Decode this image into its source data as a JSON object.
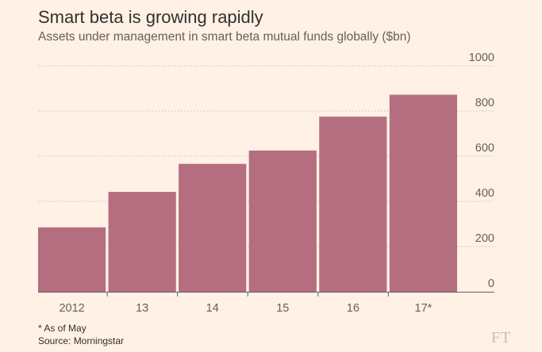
{
  "title": "Smart beta is growing rapidly",
  "subtitle": "Assets under management in smart beta mutual funds globally ($bn)",
  "footnote": "* As of May",
  "source": "Source: Morningstar",
  "logo": "FT",
  "colors": {
    "background": "#fff1e5",
    "bar": "#b46e7f",
    "grid": "#c9bdb2",
    "text": "#66605c"
  },
  "chart_data": {
    "type": "bar",
    "categories": [
      "2012",
      "13",
      "14",
      "15",
      "16",
      "17*"
    ],
    "values": [
      285,
      442,
      566,
      625,
      775,
      872
    ],
    "ylim": [
      0,
      1000
    ],
    "yticks": [
      "0",
      "200",
      "400",
      "600",
      "800",
      "1000"
    ],
    "axis_position": "right",
    "grid": true
  }
}
